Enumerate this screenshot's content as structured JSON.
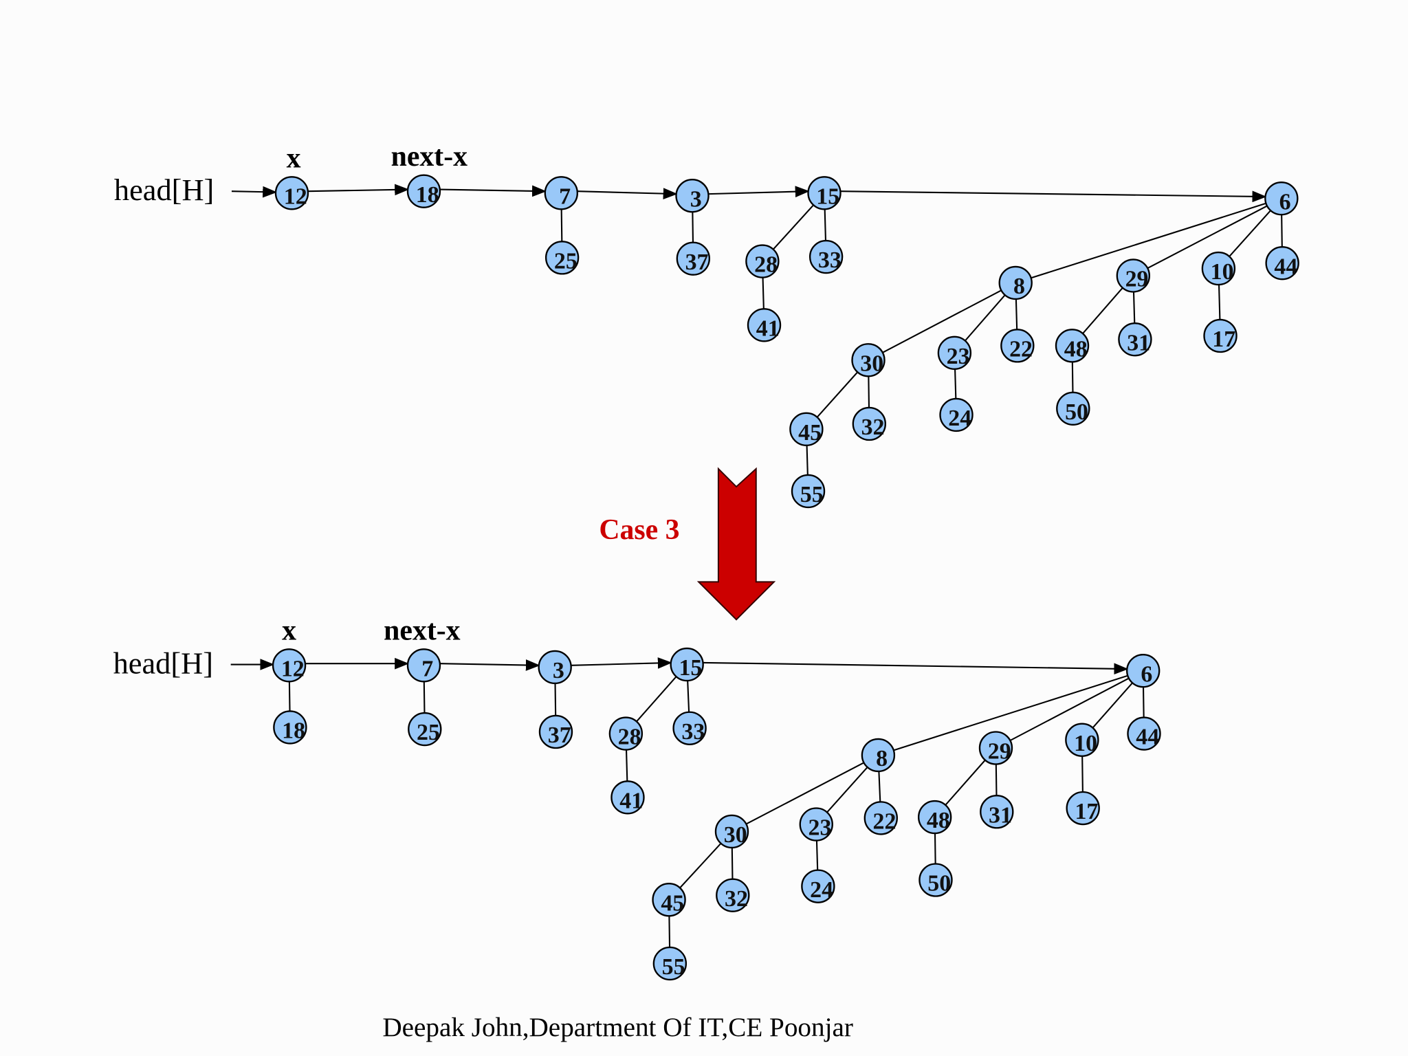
{
  "top": {
    "head": "head[H]",
    "x_label": "x",
    "next_x_label": "next-x",
    "nodes": [
      "12",
      "18",
      "7",
      "3",
      "15",
      "6",
      "25",
      "37",
      "28",
      "33",
      "41",
      "8",
      "29",
      "10",
      "44",
      "30",
      "23",
      "22",
      "48",
      "31",
      "17",
      "45",
      "32",
      "24",
      "50",
      "55"
    ]
  },
  "case_label": "Case 3",
  "bottom": {
    "head": "head[H]",
    "x_label": "x",
    "next_x_label": "next-x",
    "nodes": [
      "12",
      "7",
      "3",
      "15",
      "6",
      "18",
      "25",
      "37",
      "28",
      "33",
      "41",
      "8",
      "29",
      "10",
      "44",
      "30",
      "23",
      "22",
      "48",
      "31",
      "17",
      "45",
      "32",
      "24",
      "50",
      "55"
    ]
  },
  "footer": "Deepak John,Department Of IT,CE Poonjar"
}
